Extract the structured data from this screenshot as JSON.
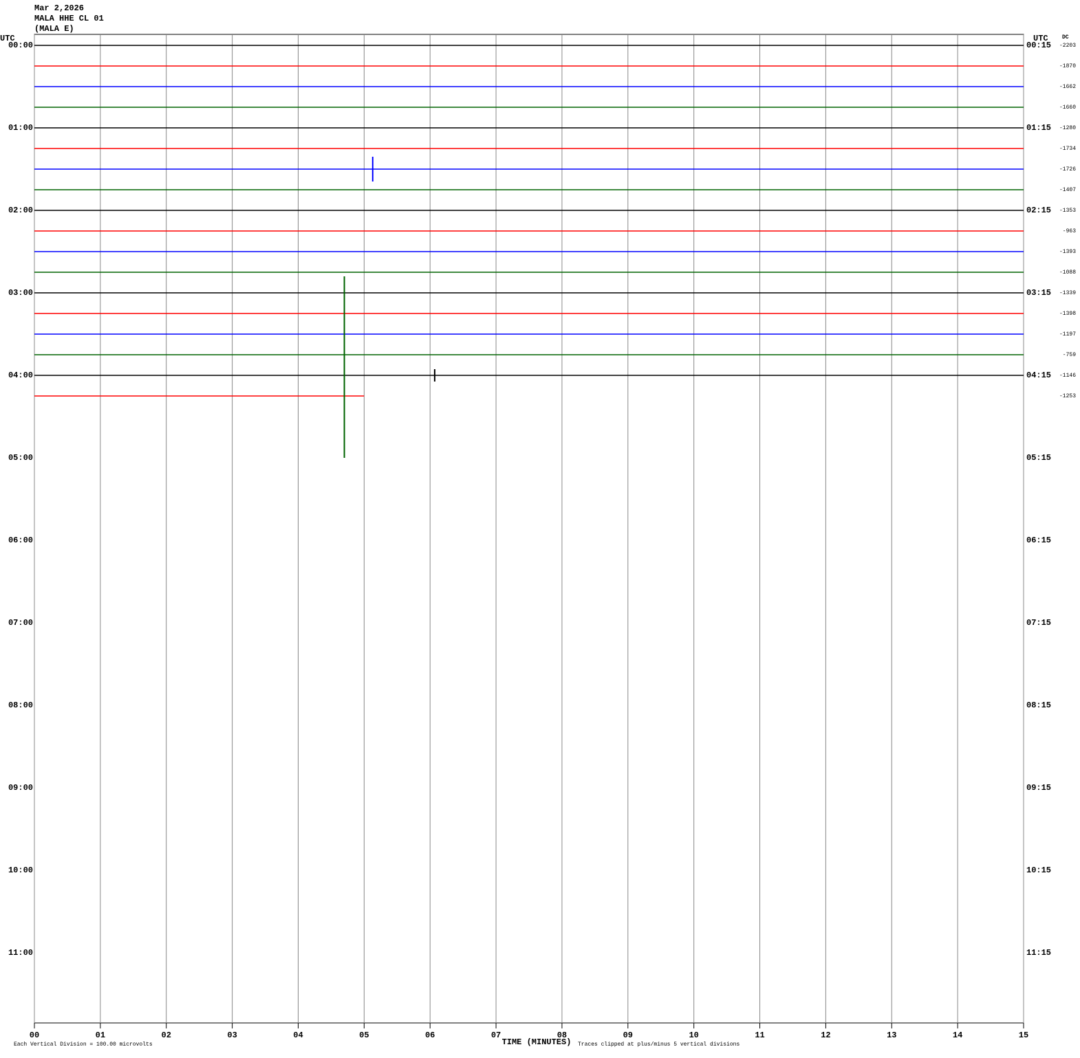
{
  "chart_data": {
    "type": "helicorder",
    "header": [
      "Mar 2,2026",
      "MALA HHE CL 01",
      "(MALA E)"
    ],
    "left_axis_title": "UTC",
    "right_axis_title": "UTC",
    "dc_title": "DC",
    "left_labels": [
      "00:00",
      "01:00",
      "02:00",
      "03:00",
      "04:00",
      "05:00",
      "06:00",
      "07:00",
      "08:00",
      "09:00",
      "10:00",
      "11:00"
    ],
    "right_labels": [
      "00:15",
      "01:15",
      "02:15",
      "03:15",
      "04:15",
      "05:15",
      "06:15",
      "07:15",
      "08:15",
      "09:15",
      "10:15",
      "11:15"
    ],
    "xlabel": "TIME (MINUTES)",
    "xlim": [
      0,
      15
    ],
    "xticks": [
      {
        "value": 0,
        "label": "00"
      },
      {
        "value": 1,
        "label": "01"
      },
      {
        "value": 2,
        "label": "02"
      },
      {
        "value": 3,
        "label": "03"
      },
      {
        "value": 4,
        "label": "04"
      },
      {
        "value": 5,
        "label": "05"
      },
      {
        "value": 6,
        "label": "06"
      },
      {
        "value": 7,
        "label": "07"
      },
      {
        "value": 8,
        "label": "08"
      },
      {
        "value": 9,
        "label": "09"
      },
      {
        "value": 10,
        "label": "10"
      },
      {
        "value": 11,
        "label": "11"
      },
      {
        "value": 12,
        "label": "12"
      },
      {
        "value": 13,
        "label": "13"
      },
      {
        "value": 14,
        "label": "14"
      },
      {
        "value": 15,
        "label": "15"
      }
    ],
    "grid": true,
    "traces": [
      {
        "color": "#000000",
        "dc": -2203,
        "end": 15
      },
      {
        "color": "#ff0000",
        "dc": -1870,
        "end": 15
      },
      {
        "color": "#0000ff",
        "dc": -1662,
        "end": 15
      },
      {
        "color": "#006400",
        "dc": -1660,
        "end": 15
      },
      {
        "color": "#000000",
        "dc": -1280,
        "end": 15
      },
      {
        "color": "#ff0000",
        "dc": -1734,
        "end": 15
      },
      {
        "color": "#0000ff",
        "dc": -1726,
        "end": 15
      },
      {
        "color": "#006400",
        "dc": -1407,
        "end": 15
      },
      {
        "color": "#000000",
        "dc": -1353,
        "end": 15
      },
      {
        "color": "#ff0000",
        "dc": -963,
        "end": 15
      },
      {
        "color": "#0000ff",
        "dc": -1393,
        "end": 15
      },
      {
        "color": "#006400",
        "dc": -1088,
        "end": 15
      },
      {
        "color": "#000000",
        "dc": -1339,
        "end": 15
      },
      {
        "color": "#ff0000",
        "dc": -1398,
        "end": 15
      },
      {
        "color": "#0000ff",
        "dc": -1197,
        "end": 15
      },
      {
        "color": "#006400",
        "dc": -759,
        "end": 15
      },
      {
        "color": "#000000",
        "dc": -1146,
        "end": 15
      },
      {
        "color": "#ff0000",
        "dc": -1253,
        "end": 5
      }
    ],
    "events": [
      {
        "trace": 6,
        "x": 5.13,
        "up": 0.6,
        "down": 0.6
      },
      {
        "trace": 15,
        "x": 4.7,
        "up": 3.8,
        "down": 5
      },
      {
        "trace": 16,
        "x": 6.07,
        "up": 0.3,
        "down": 0.3
      }
    ],
    "footer_left": "Each Vertical Division =  100.00 microvolts",
    "footer_right": "Traces clipped at plus/minus 5 vertical divisions"
  }
}
